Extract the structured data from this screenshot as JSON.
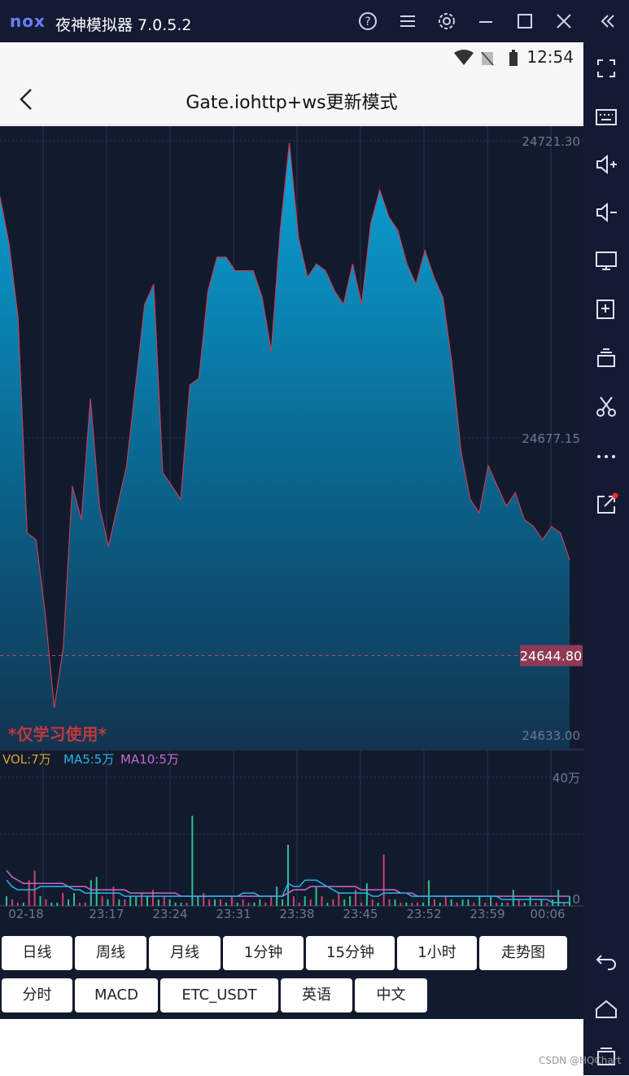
{
  "window": {
    "logo_text": "nox",
    "title": "夜神模拟器 7.0.5.2",
    "icons": [
      "help-icon",
      "menu-icon",
      "settings-icon",
      "minimize-icon",
      "maximize-icon",
      "close-icon",
      "collapse-icon"
    ]
  },
  "statusbar": {
    "time": "12:54"
  },
  "navbar": {
    "title": "Gate.iohttp+ws更新模式"
  },
  "chart_data": [
    {
      "type": "area",
      "price_labels": [
        "24721.30",
        "24677.15",
        "24644.80",
        "24633.00"
      ],
      "ylim": [
        24633.0,
        24721.3
      ],
      "current_price": 24644.8,
      "watermark": "*仅学习使用*",
      "values": [
        24713,
        24706,
        24695,
        24663,
        24662,
        24651,
        24637,
        24646,
        24670,
        24665,
        24683,
        24667,
        24661,
        24667,
        24673,
        24685,
        24697,
        24700,
        24672,
        24670,
        24668,
        24685,
        24686,
        24699,
        24704,
        24704,
        24702,
        24702,
        24702,
        24698,
        24690,
        24708,
        24721,
        24707,
        24701,
        24703,
        24702,
        24699,
        24697,
        24703,
        24697,
        24709,
        24714,
        24710,
        24708,
        24703,
        24700,
        24705,
        24701,
        24698,
        24688,
        24675,
        24668,
        24666,
        24673,
        24670,
        24667,
        24669,
        24665,
        24664,
        24662,
        24664,
        24663,
        24659
      ]
    },
    {
      "type": "bar",
      "legend": {
        "vol": "VOL:7万",
        "ma5": "MA5:5万",
        "ma10": "MA10:5万"
      },
      "ymax_label": "40万",
      "yzero_label": "0",
      "x_ticks": [
        "02-18",
        "23:17",
        "23:24",
        "23:31",
        "23:38",
        "23:45",
        "23:52",
        "23:59",
        "00:06"
      ],
      "ylim": [
        0,
        40
      ],
      "volumes": [
        3,
        2,
        1,
        1,
        8,
        11,
        3,
        2,
        1,
        1,
        4,
        2,
        4,
        1,
        1,
        8,
        9,
        3,
        2,
        6,
        2,
        2,
        3,
        3,
        4,
        3,
        5,
        2,
        3,
        2,
        1,
        1,
        1,
        28,
        3,
        4,
        2,
        2,
        2,
        1,
        3,
        1,
        2,
        1,
        1,
        2,
        1,
        3,
        6,
        2,
        19,
        3,
        1,
        3,
        2,
        6,
        3,
        1,
        2,
        4,
        2,
        3,
        5,
        1,
        7,
        2,
        1,
        16,
        2,
        2,
        1,
        1,
        1,
        1,
        1,
        8,
        2,
        1,
        3,
        2,
        1,
        2,
        2,
        1,
        3,
        1,
        3,
        1,
        1,
        1,
        5,
        2,
        1,
        3,
        1,
        2,
        1,
        2,
        5,
        1,
        3
      ],
      "up": [
        1,
        0,
        0,
        1,
        0,
        0,
        1,
        0,
        1,
        1,
        0,
        1,
        1,
        0,
        0,
        1,
        1,
        0,
        1,
        0,
        1,
        0,
        1,
        1,
        0,
        1,
        0,
        1,
        0,
        1,
        1,
        1,
        0,
        1,
        1,
        0,
        0,
        1,
        0,
        1,
        0,
        1,
        0,
        0,
        1,
        1,
        0,
        0,
        1,
        1,
        1,
        0,
        0,
        1,
        0,
        1,
        0,
        1,
        0,
        0,
        1,
        1,
        0,
        0,
        1,
        0,
        1,
        0,
        0,
        1,
        0,
        1,
        0,
        0,
        1,
        1,
        0,
        1,
        0,
        1,
        0,
        1,
        1,
        0,
        1,
        0,
        1,
        0,
        1,
        0,
        1,
        0,
        1,
        1,
        0,
        1,
        0,
        1,
        1,
        0,
        1
      ],
      "ma5": [
        8,
        6,
        5,
        5,
        5,
        5,
        6,
        6,
        6,
        6,
        6,
        6,
        5,
        5,
        4,
        4,
        4,
        4,
        4,
        4,
        4,
        3,
        3,
        3,
        3,
        3,
        3,
        3,
        3,
        3,
        3,
        3,
        3,
        3,
        3,
        3,
        3,
        3,
        3,
        3,
        3,
        3,
        4,
        4,
        4,
        3,
        3,
        3,
        3,
        3,
        7,
        6,
        6,
        8,
        8,
        8,
        7,
        6,
        5,
        4,
        4,
        4,
        4,
        4,
        4,
        3,
        3,
        4,
        4,
        4,
        4,
        4,
        3,
        3,
        3,
        3,
        3,
        3,
        3,
        3,
        3,
        3,
        3,
        3,
        3,
        3,
        3,
        3,
        2,
        2,
        2,
        2,
        2,
        2,
        2,
        2,
        2,
        1,
        1,
        1,
        1
      ],
      "ma10": [
        11,
        9,
        8,
        7,
        7,
        7,
        7,
        7,
        7,
        7,
        7,
        6,
        6,
        6,
        6,
        5,
        5,
        5,
        5,
        5,
        5,
        5,
        4,
        4,
        4,
        4,
        4,
        4,
        4,
        4,
        4,
        3,
        3,
        3,
        3,
        3,
        3,
        3,
        3,
        3,
        3,
        3,
        3,
        3,
        3,
        3,
        3,
        3,
        3,
        3,
        4,
        5,
        5,
        5,
        6,
        6,
        6,
        6,
        6,
        6,
        6,
        6,
        6,
        5,
        5,
        5,
        5,
        5,
        5,
        5,
        4,
        4,
        4,
        3,
        3,
        3,
        3,
        3,
        3,
        3,
        3,
        3,
        3,
        3,
        3,
        3,
        3,
        3,
        3,
        3,
        3,
        3,
        3,
        3,
        3,
        3,
        3,
        3,
        3,
        3,
        3
      ]
    }
  ],
  "period_buttons": {
    "row1": [
      "日线",
      "周线",
      "月线",
      "1分钟",
      "15分钟",
      "1小时",
      "走势图"
    ],
    "row2": [
      "分时",
      "MACD",
      "ETC_USDT",
      "英语",
      "中文"
    ]
  },
  "sidebar": {
    "icons": [
      "fullscreen-icon",
      "keyboard-icon",
      "volume-up-icon",
      "volume-down-icon",
      "screen-icon",
      "apk-install-icon",
      "multi-instance-icon",
      "scissors-icon",
      "more-icon",
      "share-icon",
      "back-icon",
      "home-icon",
      "recent-apps-icon"
    ]
  },
  "footer": {
    "watermark": "CSDN @HQChart"
  }
}
